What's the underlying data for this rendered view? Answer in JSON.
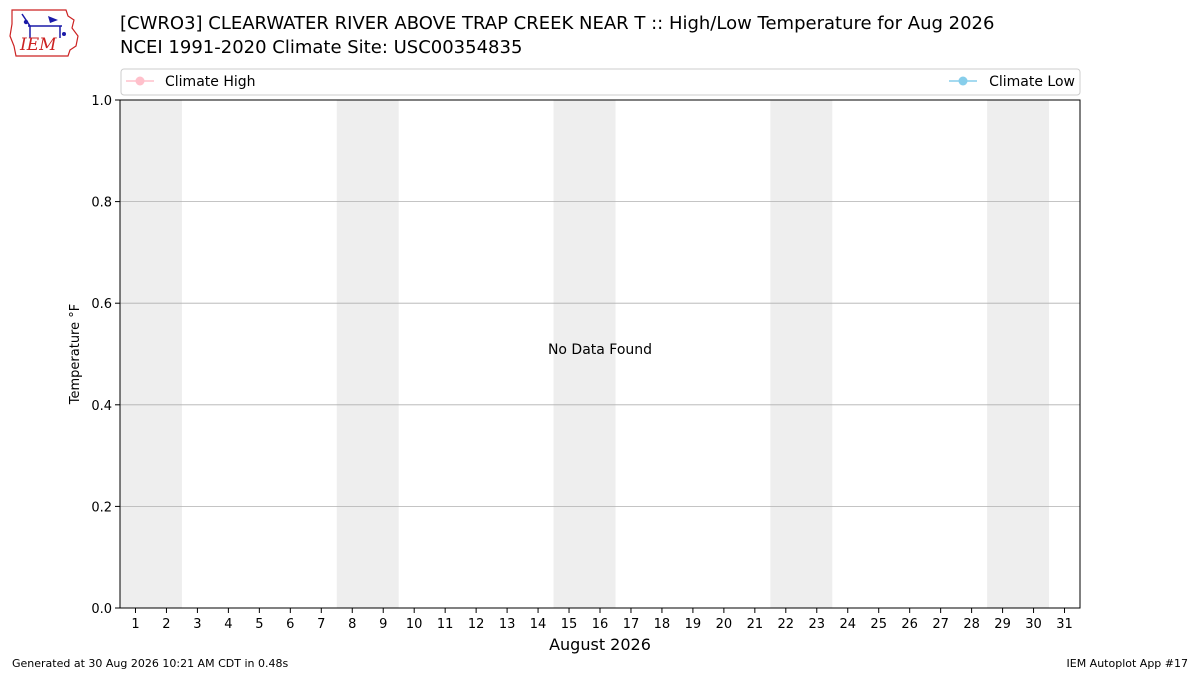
{
  "header": {
    "title_line1": "[CWRO3] CLEARWATER RIVER ABOVE TRAP CREEK NEAR T :: High/Low Temperature for Aug 2026",
    "title_line2": "NCEI 1991-2020 Climate Site: USC00354835",
    "logo_text": "IEM"
  },
  "footer": {
    "generated": "Generated at 30 Aug 2026 10:21 AM CDT in 0.48s",
    "app": "IEM Autoplot App #17"
  },
  "colors": {
    "climate_high": "#ffc0cb",
    "climate_low": "#87ceeb",
    "weekend_band": "#eeeeee",
    "grid": "#b0b0b0",
    "logo_red": "#cc2222",
    "logo_blue": "#1a1aa8"
  },
  "chart_data": {
    "type": "line",
    "title": "[CWRO3] CLEARWATER RIVER ABOVE TRAP CREEK NEAR T :: High/Low Temperature for Aug 2026",
    "subtitle": "NCEI 1991-2020 Climate Site: USC00354835",
    "xlabel": "August 2026",
    "ylabel": "Temperature °F",
    "xlim": [
      0.5,
      31.5
    ],
    "ylim": [
      0.0,
      1.0
    ],
    "x_ticks": [
      1,
      2,
      3,
      4,
      5,
      6,
      7,
      8,
      9,
      10,
      11,
      12,
      13,
      14,
      15,
      16,
      17,
      18,
      19,
      20,
      21,
      22,
      23,
      24,
      25,
      26,
      27,
      28,
      29,
      30,
      31
    ],
    "y_ticks": [
      "0.0",
      "0.2",
      "0.4",
      "0.6",
      "0.8",
      "1.0"
    ],
    "y_tick_values": [
      0.0,
      0.2,
      0.4,
      0.6,
      0.8,
      1.0
    ],
    "weekend_bands": [
      [
        0.5,
        2.5
      ],
      [
        7.5,
        9.5
      ],
      [
        14.5,
        16.5
      ],
      [
        21.5,
        23.5
      ],
      [
        28.5,
        30.5
      ]
    ],
    "grid": "horizontal",
    "legend": {
      "placement": "top, above plot",
      "entries": [
        "Climate High",
        "Climate Low"
      ]
    },
    "series": [
      {
        "name": "Climate High",
        "values": []
      },
      {
        "name": "Climate Low",
        "values": []
      }
    ],
    "annotation": "No Data Found"
  }
}
